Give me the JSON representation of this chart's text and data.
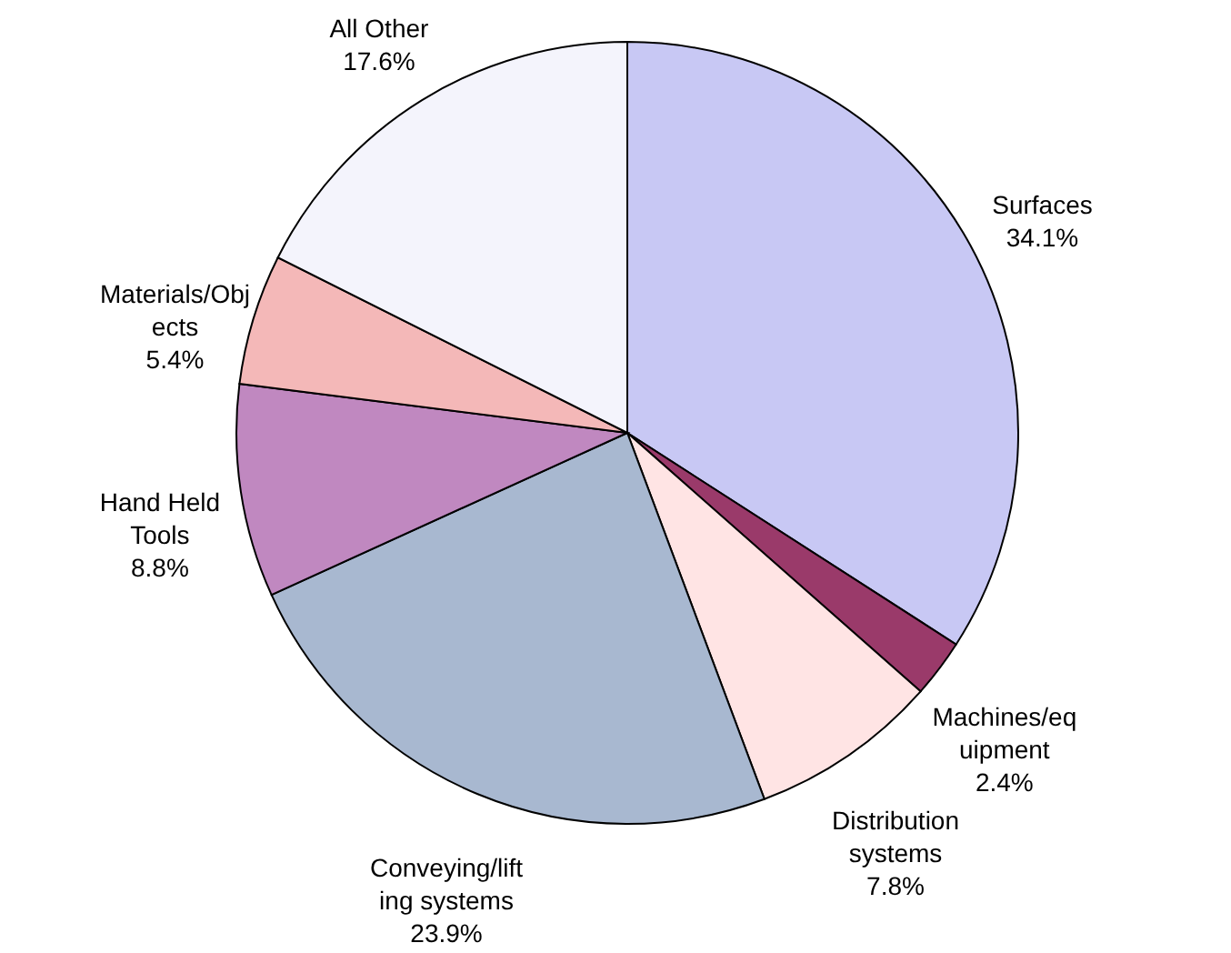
{
  "chart_data": {
    "type": "pie",
    "categories": [
      "Surfaces",
      "Machines/eq\nuipment",
      "Distribution\nsystems",
      "Conveying/lift\ning systems",
      "Hand Held\nTools",
      "Materials/Obj\nects",
      "All Other"
    ],
    "values": [
      34.1,
      2.4,
      7.8,
      23.9,
      8.8,
      5.4,
      17.6
    ],
    "value_labels": [
      "34.1%",
      "2.4%",
      "7.8%",
      "23.9%",
      "8.8%",
      "5.4%",
      "17.6%"
    ],
    "colors": [
      "#c8c8f4",
      "#9a3a6a",
      "#ffe4e4",
      "#a8b8d0",
      "#c088c0",
      "#f4b8b8",
      "#f4f4fc"
    ]
  }
}
